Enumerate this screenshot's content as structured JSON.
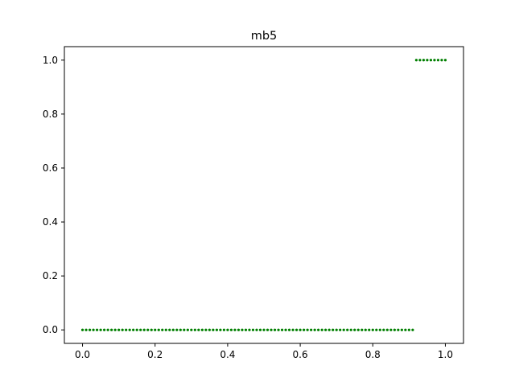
{
  "chart_data": {
    "type": "scatter",
    "title": "mb5",
    "xlabel": "",
    "ylabel": "",
    "xlim": [
      -0.05,
      1.05
    ],
    "ylim": [
      -0.05,
      1.05
    ],
    "x_ticks": [
      0.0,
      0.2,
      0.4,
      0.6,
      0.8,
      1.0
    ],
    "x_tick_labels": [
      "0.0",
      "0.2",
      "0.4",
      "0.6",
      "0.8",
      "1.0"
    ],
    "y_ticks": [
      0.0,
      0.2,
      0.4,
      0.6,
      0.8,
      1.0
    ],
    "y_tick_labels": [
      "0.0",
      "0.2",
      "0.4",
      "0.6",
      "0.8",
      "1.0"
    ],
    "grid": false,
    "series": [
      {
        "color": "#007f00",
        "x": [
          0.0,
          0.01,
          0.02,
          0.03,
          0.04,
          0.05,
          0.06,
          0.07,
          0.08,
          0.09,
          0.1,
          0.11,
          0.12,
          0.13,
          0.14,
          0.15,
          0.16,
          0.17,
          0.18,
          0.19,
          0.2,
          0.21,
          0.22,
          0.23,
          0.24,
          0.25,
          0.26,
          0.27,
          0.28,
          0.29,
          0.3,
          0.31,
          0.32,
          0.33,
          0.34,
          0.35,
          0.36,
          0.37,
          0.38,
          0.39,
          0.4,
          0.41,
          0.42,
          0.43,
          0.44,
          0.45,
          0.46,
          0.47,
          0.48,
          0.49,
          0.5,
          0.51,
          0.52,
          0.53,
          0.54,
          0.55,
          0.56,
          0.57,
          0.58,
          0.59,
          0.6,
          0.61,
          0.62,
          0.63,
          0.64,
          0.65,
          0.66,
          0.67,
          0.68,
          0.69,
          0.7,
          0.71,
          0.72,
          0.73,
          0.74,
          0.75,
          0.76,
          0.77,
          0.78,
          0.79,
          0.8,
          0.81,
          0.82,
          0.83,
          0.84,
          0.85,
          0.86,
          0.87,
          0.88,
          0.89,
          0.9,
          0.91,
          0.92,
          0.93,
          0.94,
          0.95,
          0.96,
          0.97,
          0.98,
          0.99,
          1.0
        ],
        "y": [
          0,
          0,
          0,
          0,
          0,
          0,
          0,
          0,
          0,
          0,
          0,
          0,
          0,
          0,
          0,
          0,
          0,
          0,
          0,
          0,
          0,
          0,
          0,
          0,
          0,
          0,
          0,
          0,
          0,
          0,
          0,
          0,
          0,
          0,
          0,
          0,
          0,
          0,
          0,
          0,
          0,
          0,
          0,
          0,
          0,
          0,
          0,
          0,
          0,
          0,
          0,
          0,
          0,
          0,
          0,
          0,
          0,
          0,
          0,
          0,
          0,
          0,
          0,
          0,
          0,
          0,
          0,
          0,
          0,
          0,
          0,
          0,
          0,
          0,
          0,
          0,
          0,
          0,
          0,
          0,
          0,
          0,
          0,
          0,
          0,
          0,
          0,
          0,
          0,
          0,
          0,
          0,
          1,
          1,
          1,
          1,
          1,
          1,
          1,
          1,
          1
        ]
      }
    ]
  }
}
